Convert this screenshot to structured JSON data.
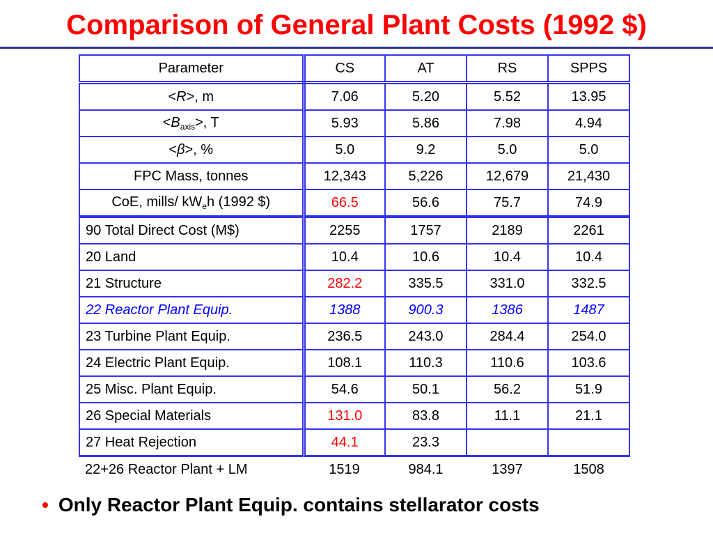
{
  "title": "Comparison of General Plant Costs (1992 $)",
  "colors": {
    "title": "#ff0000",
    "rule": "#2e3192",
    "table_border": "#3333ee",
    "highlight_red": "#ff0000",
    "highlight_blue": "#0000ff"
  },
  "table": {
    "header": [
      "Parameter",
      "CS",
      "AT",
      "RS",
      "SPPS"
    ],
    "params": {
      "r_label": {
        "pre": "<",
        "sym": "R",
        "post": ">,  m"
      },
      "b_label": {
        "pre": "<",
        "sym": "B",
        "sub": "axis",
        "post": ">,  T"
      },
      "beta_label": {
        "pre": "<",
        "sym": "β",
        "post": ">,  %"
      },
      "fpc_label": "FPC Mass,  tonnes",
      "coe_label": {
        "pre": "CoE, mills/ kW",
        "sub": "e",
        "post": "h (1992 $)"
      }
    },
    "param_values": [
      [
        "7.06",
        "5.20",
        "5.52",
        "13.95"
      ],
      [
        "5.93",
        "5.86",
        "7.98",
        "4.94"
      ],
      [
        "5.0",
        "9.2",
        "5.0",
        "5.0"
      ],
      [
        "12,343",
        "5,226",
        "12,679",
        "21,430"
      ],
      [
        "66.5",
        "56.6",
        "75.7",
        "74.9"
      ]
    ],
    "cost_rows": [
      {
        "label": "90 Total Direct Cost (M$)",
        "values": [
          "2255",
          "1757",
          "2189",
          "2261"
        ]
      },
      {
        "label": "20 Land",
        "values": [
          "10.4",
          "10.6",
          "10.4",
          "10.4"
        ]
      },
      {
        "label": "21 Structure",
        "values": [
          "282.2",
          "335.5",
          "331.0",
          "332.5"
        ]
      },
      {
        "label": "22 Reactor Plant Equip.",
        "values": [
          "1388",
          "900.3",
          "1386",
          "1487"
        ]
      },
      {
        "label": "23 Turbine Plant Equip.",
        "values": [
          "236.5",
          "243.0",
          "284.4",
          "254.0"
        ]
      },
      {
        "label": "24 Electric Plant Equip.",
        "values": [
          "108.1",
          "110.3",
          "110.6",
          "103.6"
        ]
      },
      {
        "label": "25 Misc. Plant Equip.",
        "values": [
          "54.6",
          "50.1",
          "56.2",
          "51.9"
        ]
      },
      {
        "label": "26 Special Materials",
        "values": [
          "131.0",
          "83.8",
          "11.1",
          "21.1"
        ]
      },
      {
        "label": "27 Heat Rejection",
        "values": [
          "44.1",
          "23.3",
          "",
          ""
        ]
      }
    ],
    "total_row": {
      "label": "22+26 Reactor Plant + LM",
      "values": [
        "1519",
        "984.1",
        "1397",
        "1508"
      ]
    }
  },
  "bullet": "Only Reactor Plant Equip. contains stellarator costs"
}
